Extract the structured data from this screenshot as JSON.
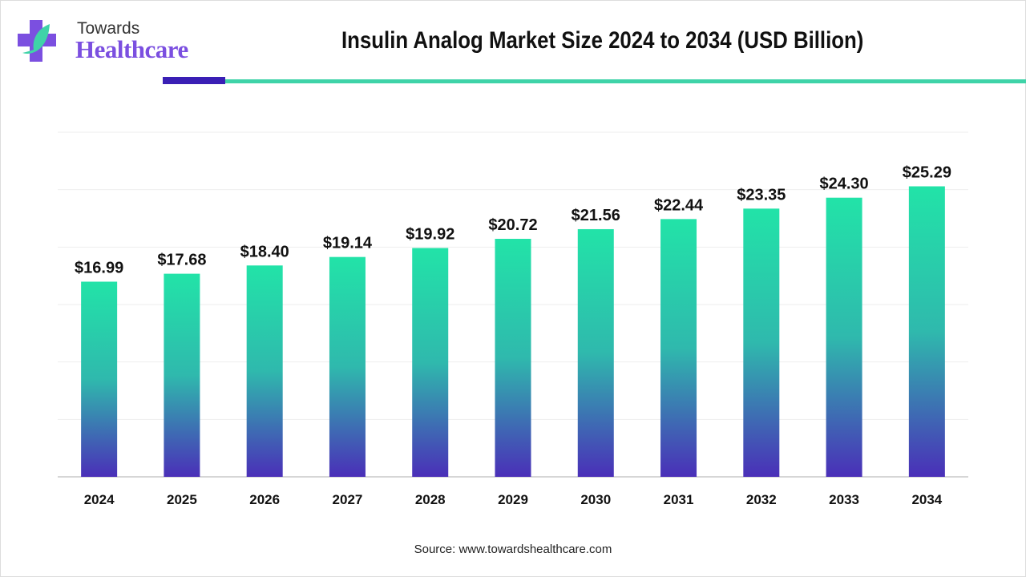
{
  "logo": {
    "line1": "Towards",
    "line2": "Healthcare",
    "colors": {
      "cross": "#7b4fe0",
      "leaf": "#3fd3a8"
    }
  },
  "header": {
    "title": "Insulin Analog Market Size 2024 to 2034 (USD Billion)",
    "accent_colors": [
      "#3a1fb5",
      "#3fd3a8"
    ]
  },
  "footer": {
    "source": "Source: www.towardshealthcare.com"
  },
  "chart_data": {
    "type": "bar",
    "title": "Insulin Analog Market Size 2024 to 2034 (USD Billion)",
    "xlabel": "",
    "ylabel": "",
    "categories": [
      "2024",
      "2025",
      "2026",
      "2027",
      "2028",
      "2029",
      "2030",
      "2031",
      "2032",
      "2033",
      "2034"
    ],
    "values": [
      16.99,
      17.68,
      18.4,
      19.14,
      19.92,
      20.72,
      21.56,
      22.44,
      23.35,
      24.3,
      25.29
    ],
    "data_labels": [
      "$16.99",
      "$17.68",
      "$18.40",
      "$19.14",
      "$19.92",
      "$20.72",
      "$21.56",
      "$22.44",
      "$23.35",
      "$24.30",
      "$25.29"
    ],
    "ylim": [
      0,
      30
    ],
    "grid": true,
    "gridline_step": 5,
    "y_tick_labels_shown": false,
    "bar_gradient": {
      "top": "#22e3a8",
      "bottom": "#4a2fb8"
    }
  }
}
